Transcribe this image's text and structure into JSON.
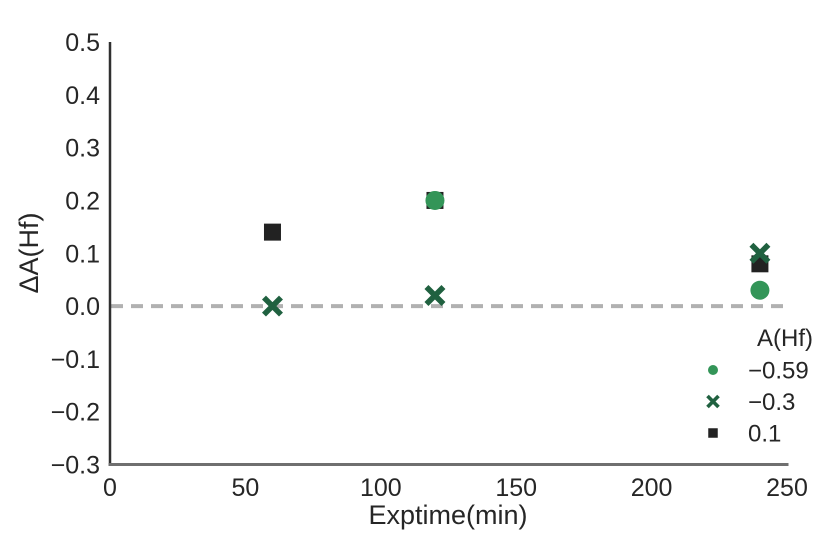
{
  "figure": {
    "background": "#ffffff",
    "text_color": "#262626",
    "left_spine_color": "#303030",
    "bottom_spine_color": "#6f6f6f"
  },
  "chart_data": {
    "type": "scatter",
    "title": "",
    "xlabel": "Exptime(min)",
    "ylabel": "ΔA(Hf)",
    "xlim": [
      0,
      250
    ],
    "ylim": [
      -0.3,
      0.5
    ],
    "grid": false,
    "xticks": {
      "values": [
        0,
        50,
        100,
        150,
        200,
        250
      ],
      "labels": [
        "0",
        "50",
        "100",
        "150",
        "200",
        "250"
      ]
    },
    "yticks": {
      "values": [
        0.5,
        0.4,
        0.3,
        0.2,
        0.1,
        0.0,
        -0.1,
        -0.2,
        -0.3
      ],
      "labels": [
        "0.5",
        "0.4",
        "0.3",
        "0.2",
        "0.1",
        "0.0",
        "−0.1",
        "−0.2",
        "−0.3"
      ]
    },
    "reference_line": {
      "y": 0.0,
      "style": "dashed",
      "color": "#b1b1b1",
      "dash": "12 8",
      "width": 4
    },
    "legend": {
      "title": "A(Hf)",
      "position": "lower right",
      "entries": [
        {
          "label": "−0.59",
          "marker": "circle",
          "color": "#339558"
        },
        {
          "label": "−0.3",
          "marker": "x",
          "color": "#206140"
        },
        {
          "label": "0.1",
          "marker": "square",
          "color": "#222222"
        }
      ]
    },
    "series": [
      {
        "name": "−0.59",
        "marker": "circle",
        "color": "#339558",
        "size": 19,
        "zorder": 2,
        "points": [
          [
            120,
            0.2
          ],
          [
            240,
            0.03
          ]
        ]
      },
      {
        "name": "−0.3",
        "marker": "x",
        "color": "#206140",
        "size": 17,
        "zorder": 3,
        "points": [
          [
            60,
            0.0
          ],
          [
            120,
            0.02
          ],
          [
            240,
            0.1
          ]
        ]
      },
      {
        "name": "0.1",
        "marker": "square",
        "color": "#222222",
        "size": 17,
        "zorder": 1,
        "points": [
          [
            60,
            0.14
          ],
          [
            120,
            0.2
          ],
          [
            240,
            0.08
          ]
        ]
      }
    ]
  }
}
